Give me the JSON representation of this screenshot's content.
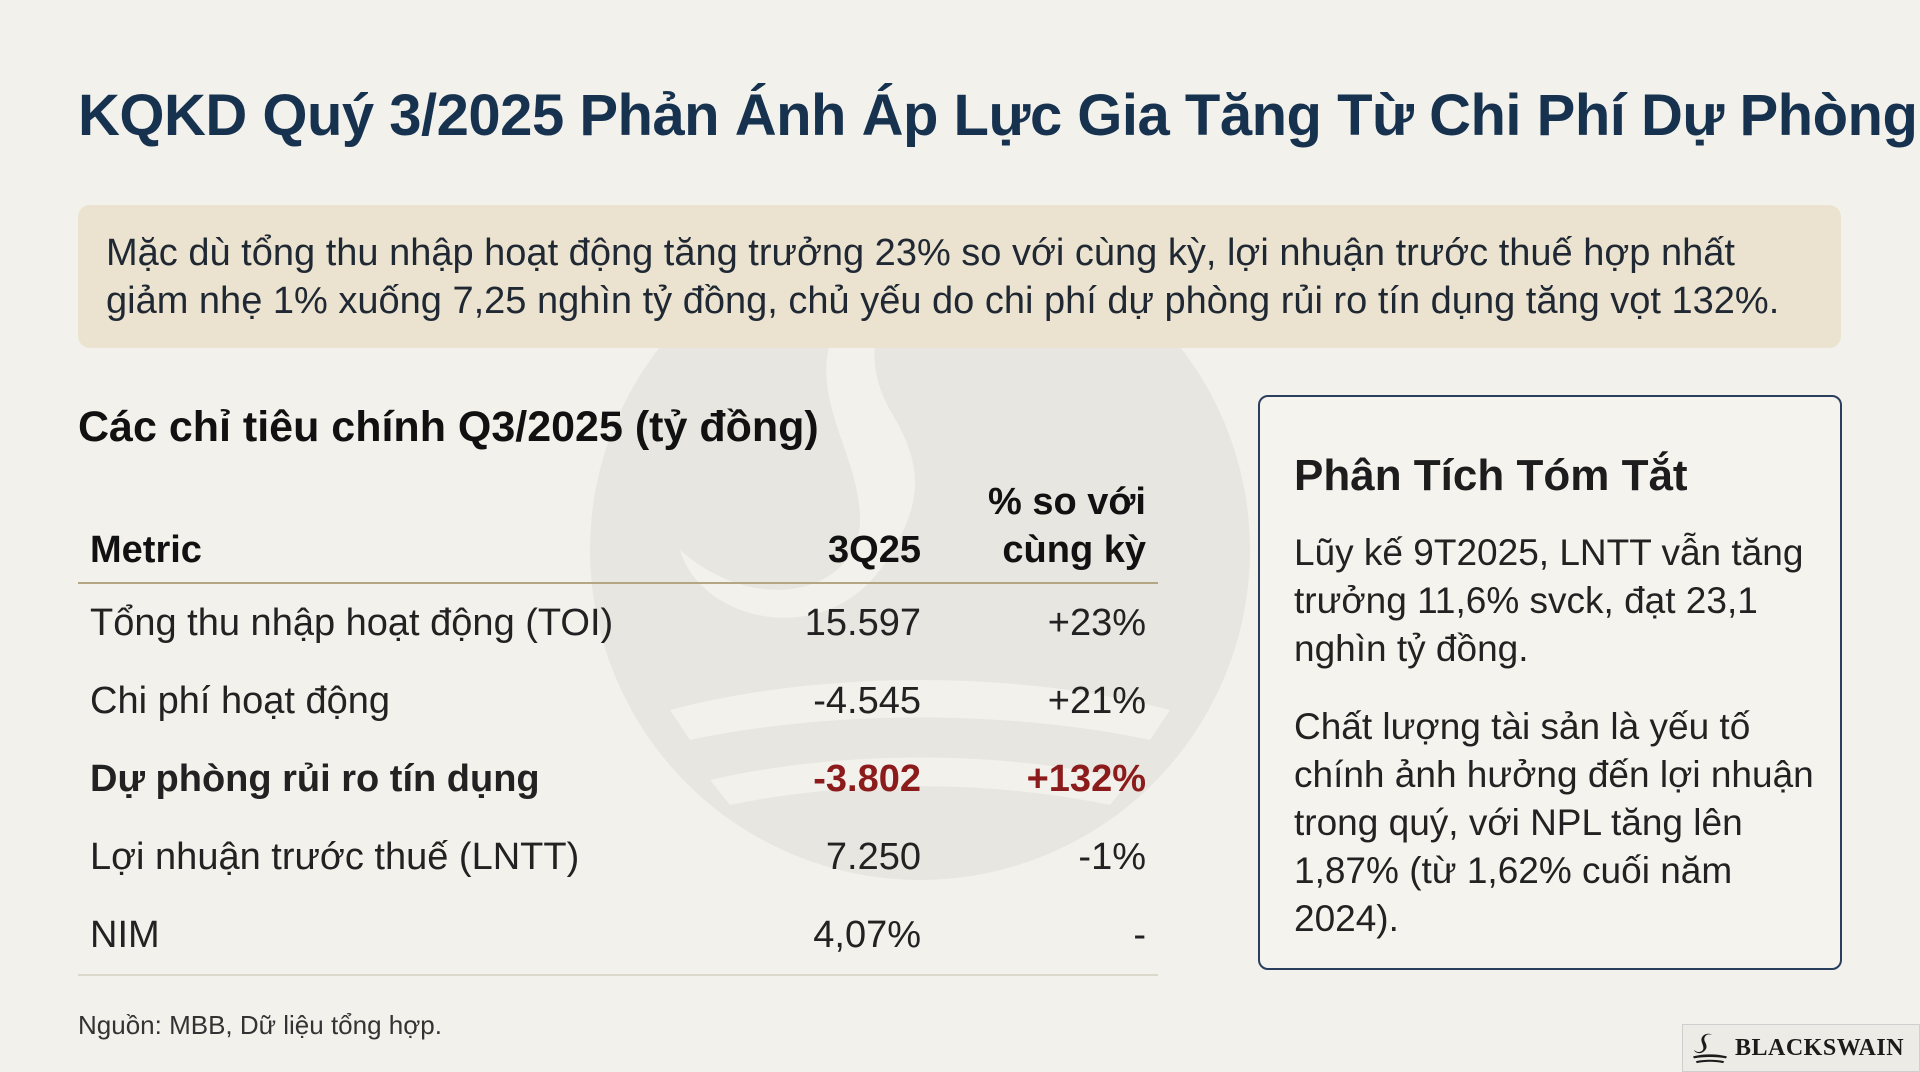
{
  "title": "KQKD Quý 3/2025 Phản Ánh Áp Lực Gia Tăng Từ Chi Phí Dự Phòng",
  "summary": "Mặc dù tổng thu nhập hoạt động tăng trưởng 23% so với cùng kỳ, lợi nhuận trước thuế hợp nhất giảm nhẹ 1% xuống 7,25 nghìn tỷ đồng, chủ yếu do chi phí dự phòng rủi ro tín dụng tăng vọt 132%.",
  "table": {
    "title": "Các chỉ tiêu chính Q3/2025 (tỷ đồng)",
    "headers": {
      "metric": "Metric",
      "value": "3Q25",
      "change_line1": "% so với",
      "change_line2": "cùng kỳ"
    },
    "rows": [
      {
        "metric": "Tổng thu nhập hoạt động (TOI)",
        "value": "15.597",
        "change": "+23%"
      },
      {
        "metric": "Chi phí hoạt động",
        "value": "-4.545",
        "change": "+21%"
      },
      {
        "metric": "Dự phòng rủi ro tín dụng",
        "value": "-3.802",
        "change": "+132%"
      },
      {
        "metric": "Lợi nhuận trước thuế (LNTT)",
        "value": "7.250",
        "change": "-1%"
      },
      {
        "metric": "NIM",
        "value": "4,07%",
        "change": "-"
      }
    ]
  },
  "source": "Nguồn: MBB, Dữ liệu tổng hợp.",
  "analysis": {
    "title": "Phân Tích Tóm Tắt",
    "paragraphs": [
      "Lũy kế 9T2025, LNTT vẫn tăng trưởng 11,6% svck, đạt 23,1 nghìn tỷ đồng.",
      "Chất lượng tài sản là yếu tố chính ảnh hưởng đến lợi nhuận trong quý, với NPL tăng lên 1,87% (từ 1,62% cuối năm 2024)."
    ]
  },
  "logo": {
    "text": "BLACKSWAIN"
  },
  "colors": {
    "title": "#17324f",
    "highlight": "#8c1c1c",
    "summary_bg": "#ebe3cf",
    "box_border": "#2a3f5e"
  },
  "icons": [
    "swan-watermark-icon",
    "swan-logo-icon"
  ]
}
